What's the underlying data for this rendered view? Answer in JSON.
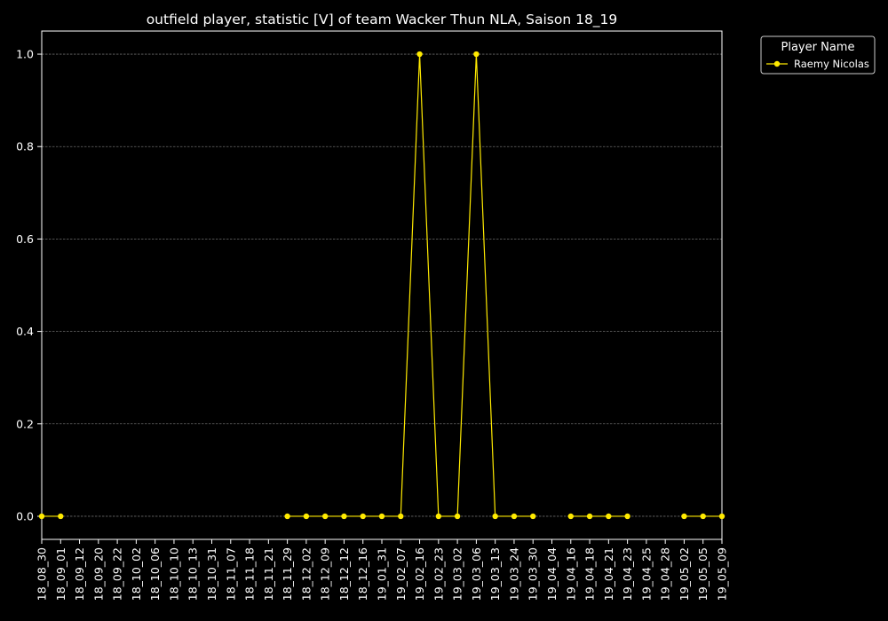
{
  "chart_data": {
    "type": "line",
    "title": "outfield player, statistic [V] of team Wacker Thun NLA, Saison 18_19",
    "xlabel": "",
    "ylabel": "",
    "ylim": [
      -0.05,
      1.05
    ],
    "yticks": [
      "0.0",
      "0.2",
      "0.4",
      "0.6",
      "0.8",
      "1.0"
    ],
    "ytick_values": [
      0,
      0.2,
      0.4,
      0.6,
      0.8,
      1.0
    ],
    "grid": "horizontal dashed",
    "legend_placement": "outside-top-right",
    "legend_title": "Player Name",
    "categories": [
      "18_08_30",
      "18_09_01",
      "18_09_12",
      "18_09_20",
      "18_09_22",
      "18_10_02",
      "18_10_06",
      "18_10_10",
      "18_10_13",
      "18_10_31",
      "18_11_07",
      "18_11_18",
      "18_11_21",
      "18_11_29",
      "18_12_02",
      "18_12_09",
      "18_12_12",
      "18_12_16",
      "19_01_31",
      "19_02_07",
      "19_02_16",
      "19_02_23",
      "19_03_02",
      "19_03_06",
      "19_03_13",
      "19_03_24",
      "19_03_30",
      "19_04_04",
      "19_04_16",
      "19_04_18",
      "19_04_21",
      "19_04_23",
      "19_04_25",
      "19_04_28",
      "19_05_02",
      "19_05_05",
      "19_05_09"
    ],
    "series": [
      {
        "name": "Raemy Nicolas",
        "color": "#ffea00",
        "values": [
          0,
          0,
          null,
          null,
          null,
          null,
          null,
          null,
          null,
          null,
          null,
          null,
          null,
          0,
          0,
          0,
          0,
          0,
          0,
          0,
          1,
          0,
          0,
          1,
          0,
          0,
          0,
          null,
          0,
          0,
          0,
          0,
          null,
          null,
          0,
          0,
          0
        ]
      }
    ]
  }
}
